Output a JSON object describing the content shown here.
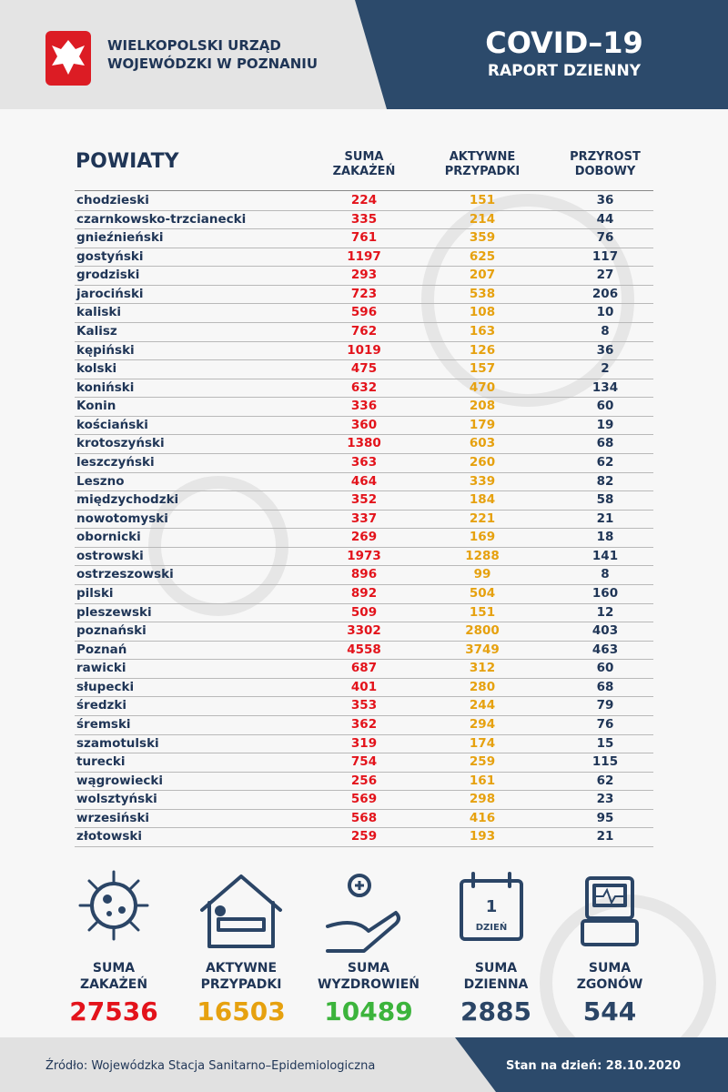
{
  "header": {
    "office": [
      "WIELKOPOLSKI URZĄD",
      "WOJEWÓDZKI W POZNANIU"
    ],
    "title": "COVID–19",
    "subtitle": "RAPORT DZIENNY"
  },
  "table": {
    "columns": [
      [
        "POWIATY"
      ],
      [
        "SUMA",
        "ZAKAŻEŃ"
      ],
      [
        "AKTYWNE",
        "PRZYPADKI"
      ],
      [
        "PRZYROST",
        "DOBOWY"
      ]
    ],
    "colors": [
      "#1f3556",
      "#e3131b",
      "#e6a10f",
      "#1f3556"
    ],
    "rows": [
      [
        "chodzieski",
        224,
        151,
        36
      ],
      [
        "czarnkowsko-trzcianecki",
        335,
        214,
        44
      ],
      [
        "gnieźnieński",
        761,
        359,
        76
      ],
      [
        "gostyński",
        1197,
        625,
        117
      ],
      [
        "grodziski",
        293,
        207,
        27
      ],
      [
        "jarociński",
        723,
        538,
        206
      ],
      [
        "kaliski",
        596,
        108,
        10
      ],
      [
        "Kalisz",
        762,
        163,
        8
      ],
      [
        "kępiński",
        1019,
        126,
        36
      ],
      [
        "kolski",
        475,
        157,
        2
      ],
      [
        "koniński",
        632,
        470,
        134
      ],
      [
        "Konin",
        336,
        208,
        60
      ],
      [
        "kościański",
        360,
        179,
        19
      ],
      [
        "krotoszyński",
        1380,
        603,
        68
      ],
      [
        "leszczyński",
        363,
        260,
        62
      ],
      [
        "Leszno",
        464,
        339,
        82
      ],
      [
        "międzychodzki",
        352,
        184,
        58
      ],
      [
        "nowotomyski",
        337,
        221,
        21
      ],
      [
        "obornicki",
        269,
        169,
        18
      ],
      [
        "ostrowski",
        1973,
        1288,
        141
      ],
      [
        "ostrzeszowski",
        896,
        99,
        8
      ],
      [
        "pilski",
        892,
        504,
        160
      ],
      [
        "pleszewski",
        509,
        151,
        12
      ],
      [
        "poznański",
        3302,
        2800,
        403
      ],
      [
        "Poznań",
        4558,
        3749,
        463
      ],
      [
        "rawicki",
        687,
        312,
        60
      ],
      [
        "słupecki",
        401,
        280,
        68
      ],
      [
        "średzki",
        353,
        244,
        79
      ],
      [
        "śremski",
        362,
        294,
        76
      ],
      [
        "szamotulski",
        319,
        174,
        15
      ],
      [
        "turecki",
        754,
        259,
        115
      ],
      [
        "wągrowiecki",
        256,
        161,
        62
      ],
      [
        "wolsztyński",
        569,
        298,
        23
      ],
      [
        "wrzesiński",
        568,
        416,
        95
      ],
      [
        "złotowski",
        259,
        193,
        21
      ]
    ]
  },
  "calendar_icon": [
    "1",
    "DZIEŃ"
  ],
  "summary": [
    {
      "label": [
        "SUMA",
        "ZAKAŻEŃ"
      ],
      "value": 27536,
      "color": "#e3131b"
    },
    {
      "label": [
        "AKTYWNE",
        "PRZYPADKI"
      ],
      "value": 16503,
      "color": "#e6a10f"
    },
    {
      "label": [
        "SUMA",
        "WYZDROWIEŃ"
      ],
      "value": 10489,
      "color": "#3cb43c"
    },
    {
      "label": [
        "SUMA",
        "DZIENNA"
      ],
      "value": 2885,
      "color": "#2b4566"
    },
    {
      "label": [
        "SUMA",
        "ZGONÓW"
      ],
      "value": 544,
      "color": "#2b4566"
    }
  ],
  "footer": {
    "source": "Źródło: Wojewódzka Stacja Sanitarno–Epidemiologiczna",
    "date": "Stan na dzień: 28.10.2020"
  }
}
